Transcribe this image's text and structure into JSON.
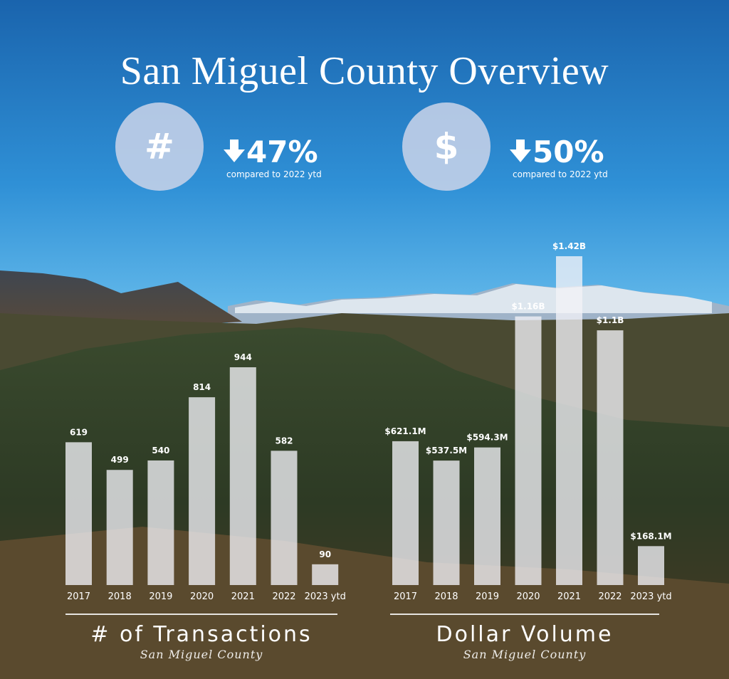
{
  "title": "San Miguel County Overview",
  "stats": [
    {
      "symbol": "#",
      "value": "47%",
      "note": "compared to 2022 ytd",
      "icon": "arrow-down-icon"
    },
    {
      "symbol": "$",
      "value": "50%",
      "note": "compared to 2022 ytd",
      "icon": "arrow-down-icon"
    }
  ],
  "colors": {
    "bar": "#f2f2f7",
    "text": "#ffffff",
    "circle": "#c6d2e8",
    "sky_top": "#1c6fb8",
    "sky_bottom": "#5ab8ee"
  },
  "chart_data": [
    {
      "type": "bar",
      "title": "# of Transactions",
      "subtitle": "San Miguel County",
      "categories": [
        "2017",
        "2018",
        "2019",
        "2020",
        "2021",
        "2022",
        "2023 ytd"
      ],
      "values": [
        619,
        499,
        540,
        814,
        944,
        582,
        90
      ],
      "labels": [
        "619",
        "499",
        "540",
        "814",
        "944",
        "582",
        "90"
      ],
      "ylim": [
        0,
        1000
      ],
      "grid": false,
      "legend": "none"
    },
    {
      "type": "bar",
      "title": "Dollar Volume",
      "subtitle": "San Miguel County",
      "categories": [
        "2017",
        "2018",
        "2019",
        "2020",
        "2021",
        "2022",
        "2023 ytd"
      ],
      "values": [
        621.1,
        537.5,
        594.3,
        1160,
        1420,
        1100,
        168.1
      ],
      "labels": [
        "$621.1M",
        "$537.5M",
        "$594.3M",
        "$1.16B",
        "$1.42B",
        "$1.1B",
        "$168.1M"
      ],
      "unit": "USD millions",
      "ylim": [
        0,
        1500
      ],
      "grid": false,
      "legend": "none"
    }
  ]
}
